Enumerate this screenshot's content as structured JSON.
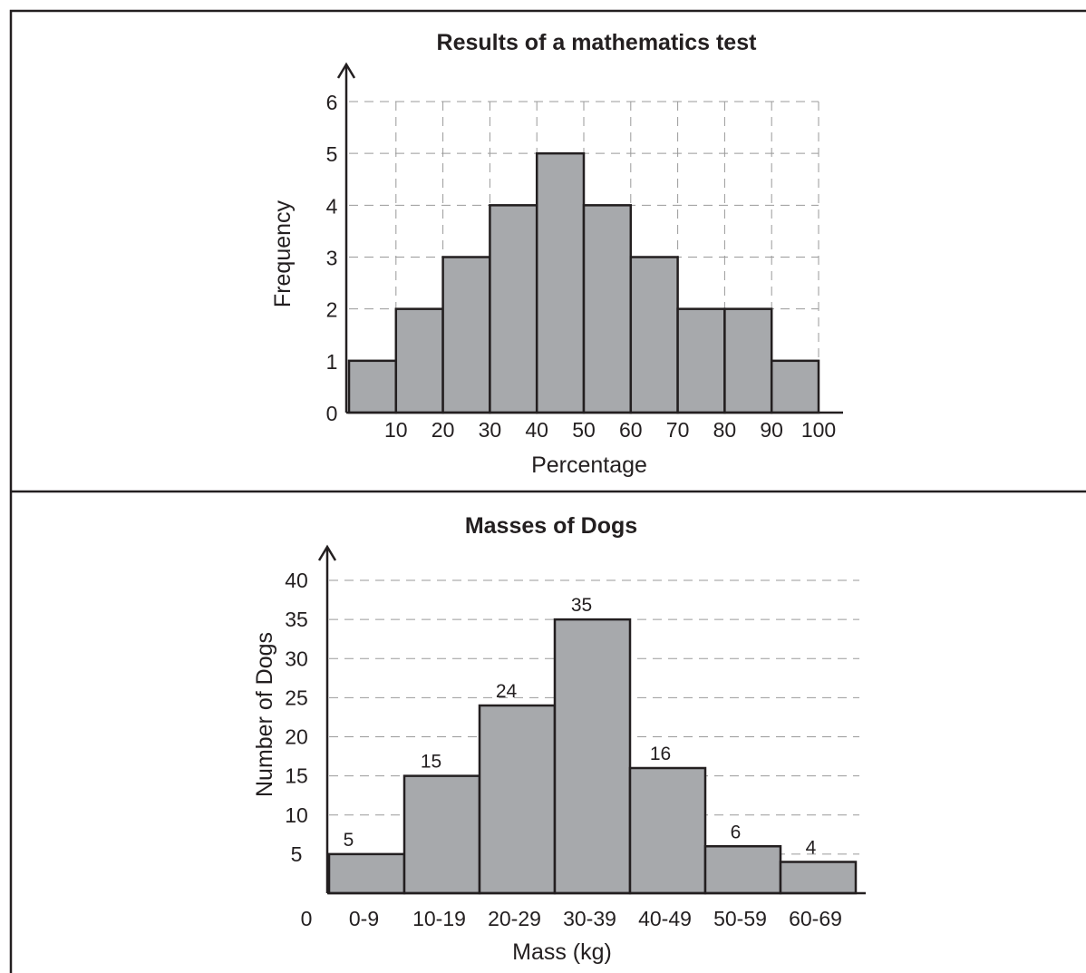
{
  "colors": {
    "bar_fill": "#a7a9ac",
    "outline": "#231f20",
    "grid": "#9a9a9a"
  },
  "chart_data": [
    {
      "type": "bar",
      "title": "Results of a mathematics test",
      "xlabel": "Percentage",
      "ylabel": "Frequency",
      "bins": [
        [
          0,
          10
        ],
        [
          10,
          20
        ],
        [
          20,
          30
        ],
        [
          30,
          40
        ],
        [
          40,
          50
        ],
        [
          50,
          60
        ],
        [
          60,
          70
        ],
        [
          70,
          80
        ],
        [
          80,
          90
        ],
        [
          90,
          100
        ]
      ],
      "values": [
        1,
        2,
        3,
        4,
        5,
        4,
        3,
        2,
        2,
        1
      ],
      "xlim": [
        0,
        100
      ],
      "ylim": [
        0,
        6
      ],
      "x_ticks": [
        "10",
        "20",
        "30",
        "40",
        "50",
        "60",
        "70",
        "80",
        "90",
        "100"
      ],
      "y_ticks": [
        "0",
        "1",
        "2",
        "3",
        "4",
        "5",
        "6"
      ],
      "grid": true
    },
    {
      "type": "bar",
      "title": "Masses of Dogs",
      "xlabel": "Mass (kg)",
      "ylabel": "Number of Dogs",
      "categories": [
        "0-9",
        "10-19",
        "20-29",
        "30-39",
        "40-49",
        "50-59",
        "60-69"
      ],
      "values": [
        5,
        15,
        24,
        35,
        16,
        6,
        4
      ],
      "value_labels": [
        "5",
        "15",
        "24",
        "35",
        "16",
        "6",
        "4"
      ],
      "ylim": [
        0,
        40
      ],
      "origin_label": "0",
      "y_ticks": [
        "5",
        "10",
        "15",
        "20",
        "25",
        "30",
        "35",
        "40"
      ],
      "grid": true
    }
  ]
}
